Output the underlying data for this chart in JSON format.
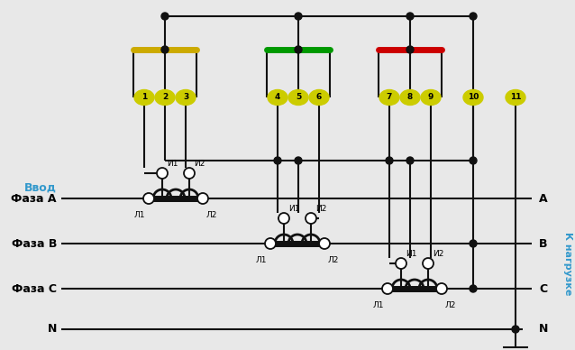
{
  "bg_color": "#e8e8e8",
  "wire_color": "#111111",
  "bus_colors": [
    "#ccaa00",
    "#009900",
    "#cc0000"
  ],
  "terminal_color": "#cccc00",
  "terminal_text_color": "#000000",
  "terminal_numbers": [
    "1",
    "2",
    "3",
    "4",
    "5",
    "6",
    "7",
    "8",
    "9",
    "10",
    "11"
  ],
  "label_ввод": "Ввод",
  "label_фаза_а": "Фаза А",
  "label_фаза_в": "Фаза В",
  "label_фаза_с": "Фаза С",
  "label_n": "N",
  "label_right": "К нагрузке",
  "label_color_left": "#000000",
  "label_color_vvod": "#3399cc",
  "label_color_right": "#3399cc"
}
